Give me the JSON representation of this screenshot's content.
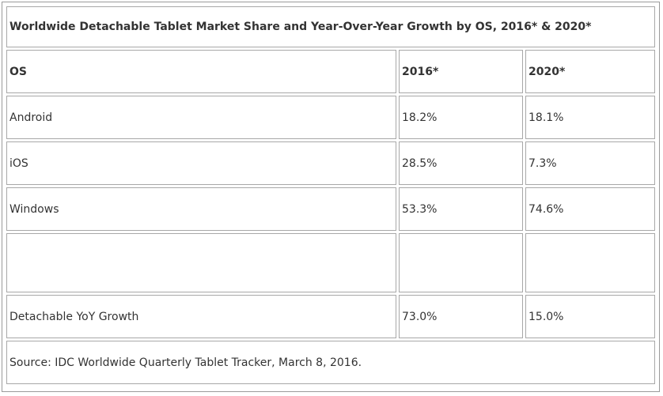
{
  "chart_data": {
    "type": "table",
    "title": "Worldwide Detachable Tablet Market Share and Year-Over-Year Growth by OS, 2016* & 2020*",
    "columns": [
      "OS",
      "2016*",
      "2020*"
    ],
    "rows": [
      [
        "Android",
        "18.2%",
        "18.1%"
      ],
      [
        "iOS",
        "28.5%",
        "7.3%"
      ],
      [
        "Windows",
        "53.3%",
        "74.6%"
      ],
      [
        "",
        "",
        ""
      ],
      [
        "Detachable YoY Growth",
        "73.0%",
        "15.0%"
      ]
    ],
    "source": "Source: IDC Worldwide Quarterly Tablet Tracker, March 8, 2016."
  }
}
